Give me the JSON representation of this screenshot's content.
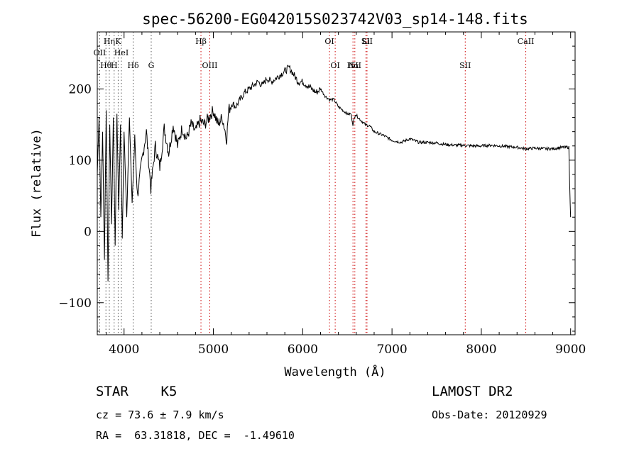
{
  "chart_data": {
    "type": "line",
    "title": "spec-56200-EG042015S023742V03_sp14-148.fits",
    "xlabel": "Wavelength (Å)",
    "ylabel": "Flux (relative)",
    "xlim": [
      3700,
      9050
    ],
    "ylim": [
      -145,
      280
    ],
    "x_ticks": [
      4000,
      5000,
      6000,
      7000,
      8000,
      9000
    ],
    "y_ticks": [
      -100,
      0,
      100,
      200
    ],
    "grid": false,
    "series": [
      {
        "x": [
          3700,
          3720,
          3740,
          3760,
          3780,
          3800,
          3820,
          3840,
          3860,
          3880,
          3900,
          3920,
          3940,
          3960,
          3980,
          4000,
          4030,
          4060,
          4090,
          4120,
          4150,
          4200,
          4250,
          4300,
          4350,
          4400,
          4450,
          4500,
          4550,
          4600,
          4650,
          4700,
          4750,
          4800,
          4850,
          4900,
          4950,
          5000,
          5050,
          5100,
          5150,
          5170,
          5190,
          5210,
          5250,
          5300,
          5350,
          5400,
          5450,
          5500,
          5550,
          5600,
          5650,
          5700,
          5750,
          5800,
          5850,
          5900,
          5950,
          6000,
          6050,
          6100,
          6150,
          6200,
          6250,
          6300,
          6350,
          6400,
          6450,
          6500,
          6540,
          6563,
          6590,
          6620,
          6660,
          6700,
          6750,
          6800,
          6900,
          7000,
          7100,
          7200,
          7300,
          7400,
          7500,
          7600,
          7700,
          7800,
          7900,
          8000,
          8100,
          8200,
          8300,
          8400,
          8500,
          8600,
          8700,
          8800,
          8900,
          8980,
          8990,
          9000
        ],
        "y": [
          80,
          160,
          20,
          140,
          -40,
          170,
          -70,
          150,
          10,
          160,
          -20,
          165,
          30,
          150,
          -10,
          140,
          20,
          160,
          40,
          130,
          50,
          100,
          140,
          60,
          120,
          90,
          145,
          110,
          150,
          120,
          145,
          130,
          150,
          140,
          155,
          150,
          160,
          170,
          150,
          160,
          130,
          170,
          175,
          180,
          175,
          185,
          195,
          200,
          205,
          210,
          205,
          215,
          210,
          215,
          220,
          225,
          230,
          220,
          210,
          210,
          205,
          200,
          195,
          200,
          190,
          185,
          185,
          175,
          170,
          165,
          165,
          150,
          165,
          160,
          155,
          150,
          148,
          140,
          135,
          128,
          125,
          130,
          125,
          125,
          124,
          122,
          121,
          121,
          120,
          120,
          121,
          120,
          119,
          118,
          116,
          117,
          116,
          116,
          118,
          118,
          60,
          20
        ]
      }
    ],
    "lines": [
      {
        "label": "Hη",
        "x": 3835
      },
      {
        "label": "H",
        "x": 3889
      },
      {
        "label": "Hθ",
        "x": 3797
      },
      {
        "label": "K",
        "x": 3934
      },
      {
        "label": "OII",
        "x": 3727
      },
      {
        "label": "HeI",
        "x": 3970
      },
      {
        "label": "Hδ",
        "x": 4102
      },
      {
        "label": "G",
        "x": 4304
      },
      {
        "label": "Hβ",
        "x": 4861
      },
      {
        "label": "OIII",
        "x": 4960
      },
      {
        "label": "OI",
        "x": 6300
      },
      {
        "label": "OI",
        "x": 6364
      },
      {
        "label": "Hα",
        "x": 6563
      },
      {
        "label": "NII",
        "x": 6584
      },
      {
        "label": "Li",
        "x": 6708
      },
      {
        "label": "SII",
        "x": 6720
      },
      {
        "label": "SII",
        "x": 7820
      },
      {
        "label": "CaII",
        "x": 8498
      }
    ]
  },
  "info": {
    "class": "STAR    K5",
    "cz": "cz = 73.6 ± 7.9 km/s",
    "radec": "RA =  63.31818, DEC =  -1.49610",
    "survey": "LAMOST DR2",
    "obsdate": "Obs-Date: 20120929"
  },
  "colors": {
    "axis": "#000000",
    "spectrum": "#000000",
    "ref_line_red": "#cc0000",
    "ref_line_black": "#555555"
  }
}
